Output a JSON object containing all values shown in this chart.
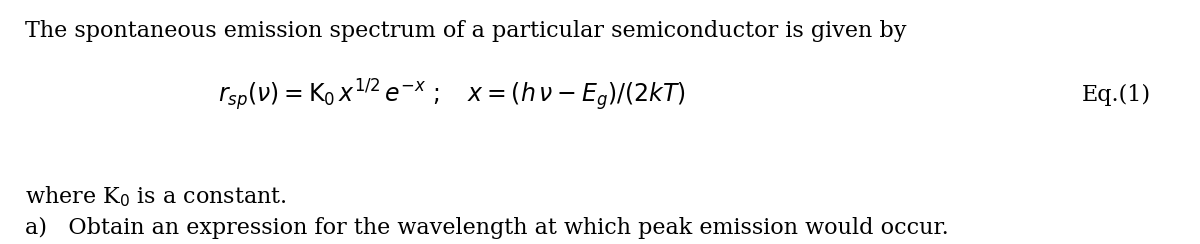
{
  "background_color": "#ffffff",
  "line1": "The spontaneous emission spectrum of a particular semiconductor is given by",
  "eq_label": "Eq.(1)",
  "where_line": "where K$_0$ is a constant.",
  "part_a": "a)   Obtain an expression for the wavelength at which peak emission would occur.",
  "font_size_text": 16,
  "font_size_eq": 17,
  "text_color": "#000000"
}
